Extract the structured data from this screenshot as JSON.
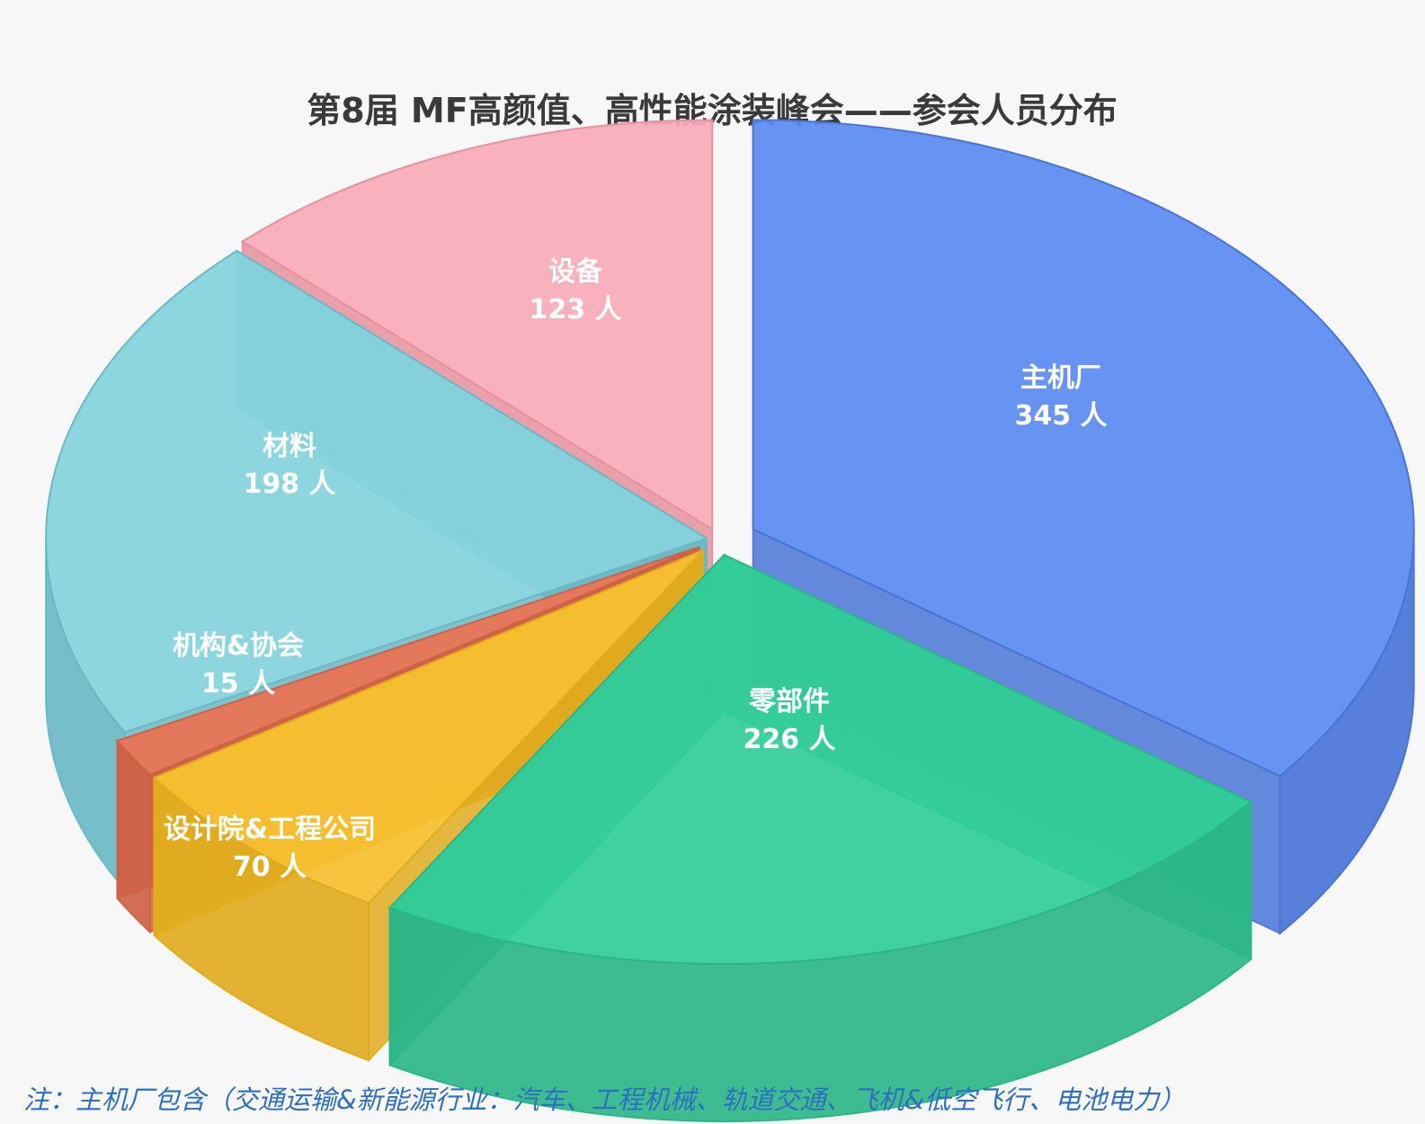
{
  "chart_data": {
    "type": "pie",
    "title": "第8届 MF高颜值、高性能涂装峰会——参会人员分布",
    "unit": "人",
    "slices": [
      {
        "label": "主机厂",
        "value": 345,
        "color": "#5b8bf2",
        "side": "#4a74d6"
      },
      {
        "label": "零部件",
        "value": 226,
        "color": "#33cc99",
        "side": "#2cb688"
      },
      {
        "label": "设计院&工程公司",
        "value": 70,
        "color": "#f6c030",
        "side": "#e1ab1f"
      },
      {
        "label": "机构&协会",
        "value": 15,
        "color": "#e57a5a",
        "side": "#cf6245"
      },
      {
        "label": "材料",
        "value": 198,
        "color": "#84d3de",
        "side": "#6ab9c6"
      },
      {
        "label": "设备",
        "value": 123,
        "color": "#f8abb8",
        "side": "#e8909e"
      }
    ],
    "legend": "none",
    "grid": false
  },
  "footnote": "注：主机厂包含（交通运输&新能源行业：汽车、工程机械、轨道交通、飞机&低空飞行、电池电力）"
}
